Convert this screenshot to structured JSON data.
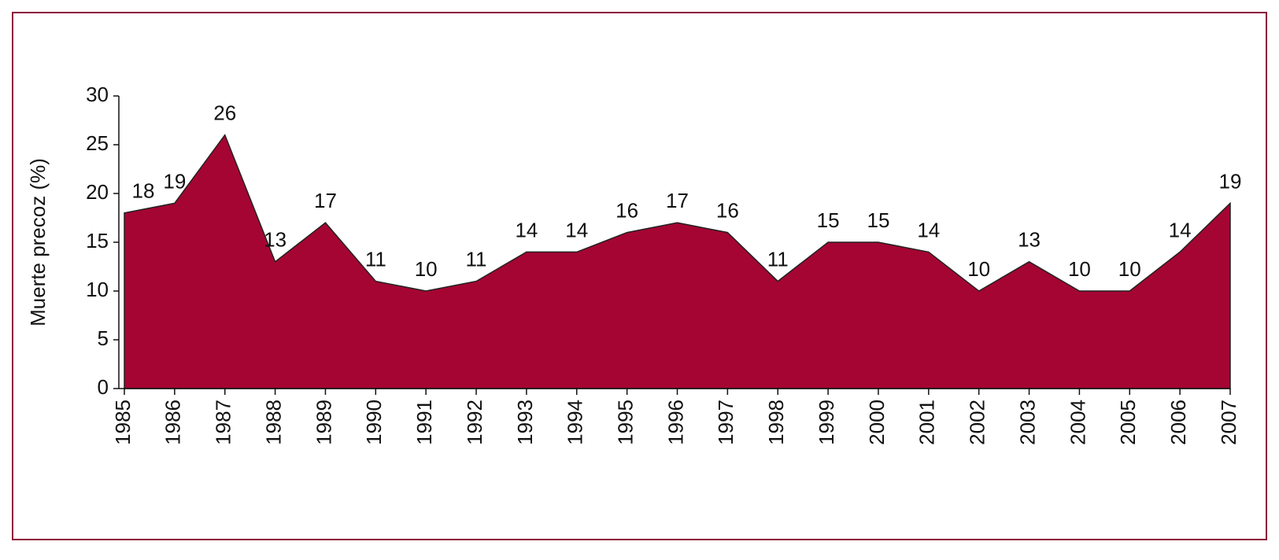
{
  "chart_data": {
    "type": "area",
    "ylabel": "Muerte precoz (%)",
    "categories": [
      "1985",
      "1986",
      "1987",
      "1988",
      "1989",
      "1990",
      "1991",
      "1992",
      "1993",
      "1994",
      "1995",
      "1996",
      "1997",
      "1998",
      "1999",
      "2000",
      "2001",
      "2002",
      "2003",
      "2004",
      "2005",
      "2006",
      "2007"
    ],
    "values": [
      18,
      19,
      26,
      13,
      17,
      11,
      10,
      11,
      14,
      14,
      16,
      17,
      16,
      11,
      15,
      15,
      14,
      10,
      13,
      10,
      10,
      14,
      19
    ],
    "color": "#a50532",
    "ylim": [
      0,
      30
    ],
    "yticks": [
      0,
      5,
      10,
      15,
      20,
      25,
      30
    ]
  }
}
